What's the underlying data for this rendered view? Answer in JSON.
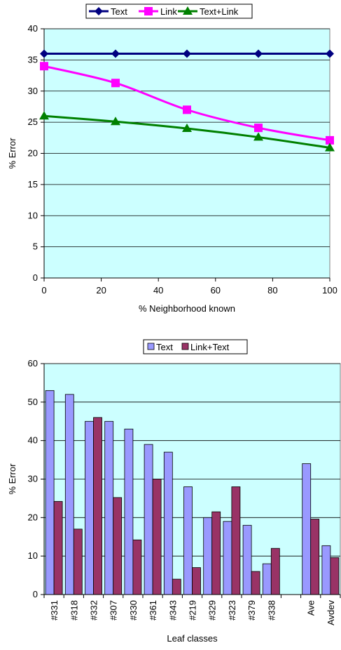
{
  "chart_data": [
    {
      "type": "line",
      "xlabel": "% Neighborhood known",
      "ylabel": "% Error",
      "xlim": [
        0,
        100
      ],
      "ylim": [
        0,
        40
      ],
      "xticks": [
        0,
        20,
        40,
        60,
        80,
        100
      ],
      "yticks": [
        0,
        5,
        10,
        15,
        20,
        25,
        30,
        35,
        40
      ],
      "grid": true,
      "legend_position": "top",
      "x": [
        0,
        25,
        50,
        75,
        100
      ],
      "series": [
        {
          "name": "Text",
          "values": [
            36,
            36,
            36,
            36,
            36
          ],
          "color": "#000080",
          "marker": "diamond"
        },
        {
          "name": "Link",
          "values": [
            34,
            31.3,
            27,
            24.1,
            22.1
          ],
          "color": "#ff00ff",
          "marker": "square"
        },
        {
          "name": "Text+Link",
          "values": [
            26,
            25.1,
            24,
            22.6,
            20.9
          ],
          "color": "#008000",
          "marker": "triangle"
        }
      ]
    },
    {
      "type": "bar",
      "xlabel": "Leaf classes",
      "ylabel": "% Error",
      "ylim": [
        0,
        60
      ],
      "yticks": [
        0,
        10,
        20,
        30,
        40,
        50,
        60
      ],
      "grid": true,
      "legend_position": "top",
      "categories": [
        "#331",
        "#318",
        "#332",
        "#307",
        "#330",
        "#361",
        "#343",
        "#219",
        "#329",
        "#323",
        "#379",
        "#338",
        "",
        "Ave",
        "Avdev"
      ],
      "series": [
        {
          "name": "Text",
          "values": [
            53,
            52,
            45,
            45,
            43,
            39,
            37,
            28,
            20,
            19,
            18,
            8,
            null,
            34,
            12.7
          ],
          "color": "#9999ff"
        },
        {
          "name": "Link+Text",
          "values": [
            24.2,
            17,
            46,
            25.2,
            14.2,
            30,
            4,
            7,
            21.5,
            28,
            6,
            12,
            null,
            19.6,
            9.6
          ],
          "color": "#993366"
        }
      ]
    }
  ]
}
